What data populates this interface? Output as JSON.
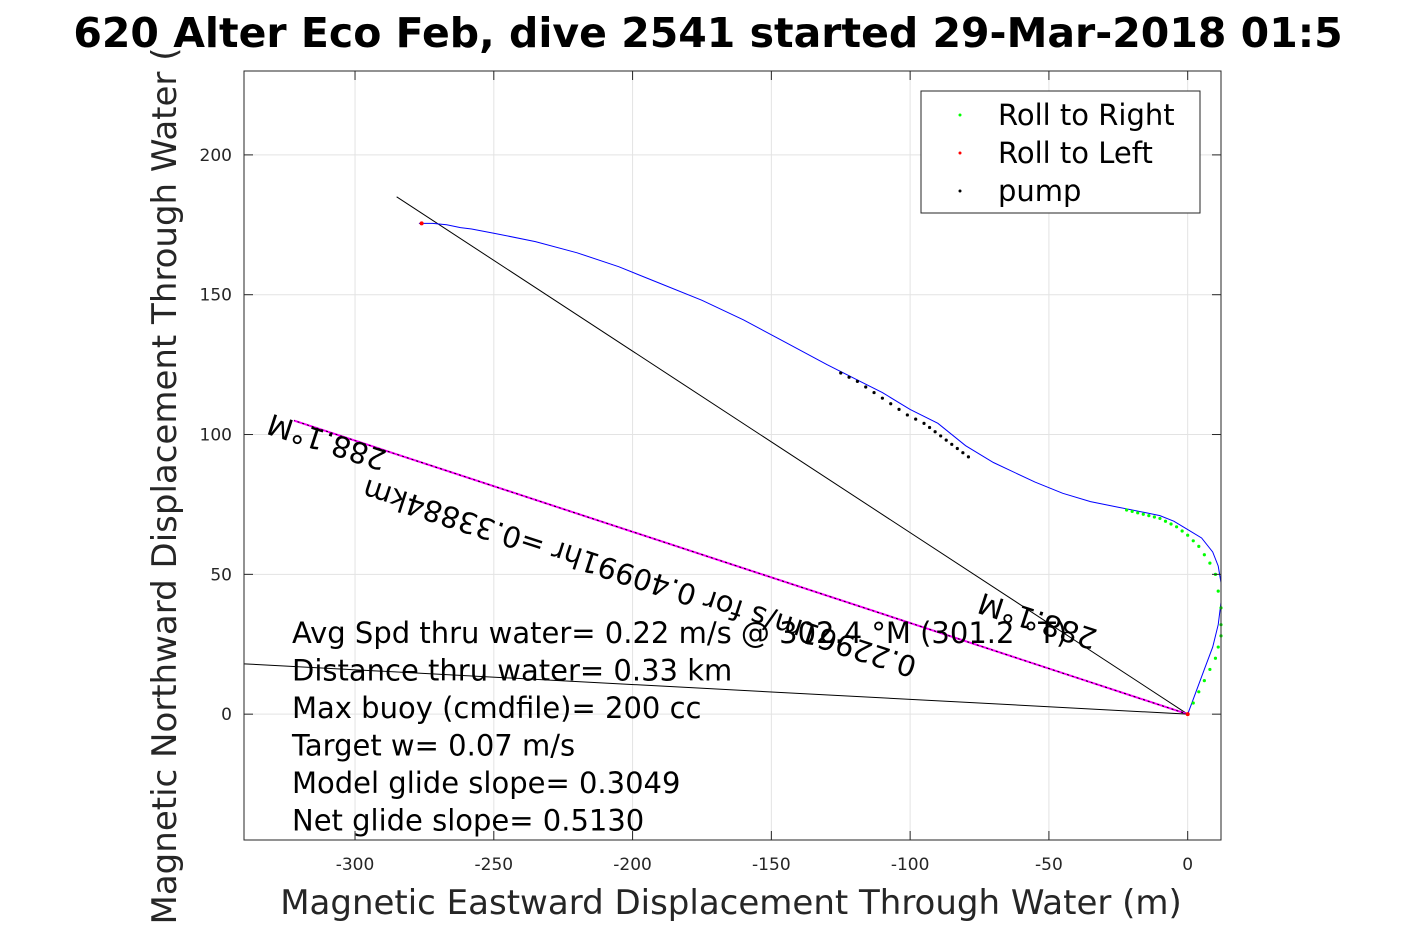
{
  "chart_data": {
    "type": "scatter",
    "title": "620 Alter Eco Feb, dive 2541 started 29-Mar-2018 01:5",
    "xlabel": "Magnetic Eastward Displacement Through Water (m)",
    "ylabel": "Magnetic Northward Displacement Through Water (",
    "xlim": [
      -340,
      12
    ],
    "ylim": [
      -45,
      230
    ],
    "grid": true,
    "legend_position": "top-right",
    "x_ticks": [
      -300,
      -250,
      -200,
      -150,
      -100,
      -50,
      0
    ],
    "y_ticks": [
      0,
      50,
      100,
      150,
      200
    ],
    "legend": [
      {
        "label": "Roll to Right",
        "color": "#00ff00"
      },
      {
        "label": "Roll to Left",
        "color": "#ff0000"
      },
      {
        "label": "pump",
        "color": "#000000"
      }
    ],
    "track": {
      "color": "#0000ff",
      "x": [
        0,
        3,
        6,
        9,
        11,
        12,
        12,
        11,
        9,
        5,
        0,
        -5,
        -10,
        -15,
        -20,
        -25,
        -35,
        -45,
        -55,
        -70,
        -80,
        -90,
        -100,
        -110,
        -120,
        -130,
        -145,
        -160,
        -175,
        -190,
        -205,
        -220,
        -235,
        -250,
        -258,
        -262,
        -267,
        -272,
        -277
      ],
      "y": [
        0,
        8,
        16,
        24,
        32,
        40,
        47,
        53,
        58,
        63,
        66,
        69,
        71,
        72,
        73,
        74,
        76,
        79,
        83,
        90,
        96,
        104,
        109,
        115,
        120,
        125,
        133,
        141,
        148,
        154,
        160,
        165,
        169,
        172,
        173.5,
        174,
        175,
        175.5,
        175.5
      ]
    },
    "roll_right": {
      "x": [
        0,
        2,
        4,
        6,
        8,
        10,
        11,
        12,
        12,
        12,
        11,
        10,
        8,
        6,
        4,
        2,
        0,
        -2,
        -4,
        -6,
        -8,
        -10,
        -12,
        -14,
        -16,
        -18,
        -20,
        -22
      ],
      "y": [
        0,
        4,
        8,
        12,
        16,
        20,
        24,
        28,
        32,
        38,
        44,
        50,
        54,
        57,
        60,
        62,
        64,
        65.5,
        67,
        68,
        69,
        70,
        70.5,
        71,
        71.5,
        72,
        72.5,
        73
      ]
    },
    "roll_left": {
      "x": [
        0,
        -276
      ],
      "y": [
        0,
        175.5
      ]
    },
    "pump": {
      "x": [
        -125,
        -122,
        -119,
        -116,
        -113,
        -110,
        -107,
        -104,
        -101,
        -98,
        -95,
        -93,
        -91,
        -89,
        -87,
        -85,
        -83,
        -81,
        -79
      ],
      "y": [
        122,
        120.5,
        119,
        117,
        115,
        113,
        111,
        109,
        107,
        105.5,
        104,
        102.5,
        101,
        99.5,
        98,
        96.5,
        95,
        93.5,
        92
      ]
    },
    "lines": [
      {
        "name": "model-heading-line",
        "color": "#000000",
        "x": [
          0,
          -285
        ],
        "y": [
          0,
          185
        ]
      },
      {
        "name": "net-heading-line",
        "color": "#ff00ff",
        "x": [
          0,
          -322
        ],
        "y": [
          0,
          105
        ]
      },
      {
        "name": "net-heading-overlay",
        "color": "#000000",
        "x": [
          0,
          -322
        ],
        "y": [
          0,
          105
        ]
      },
      {
        "name": "current-line",
        "color": "#000000",
        "x": [
          0,
          -340
        ],
        "y": [
          0,
          18
        ]
      }
    ],
    "rotated_labels": [
      {
        "text": "288.1°M",
        "x": -288,
        "y": 94,
        "angle": 198
      },
      {
        "text": "0.22961m/s for 0.4099 1hr =0.33884km",
        "text_display": "0.22961m/s for 0.40991hr =0.33884km",
        "x": -97,
        "y": 20,
        "angle": 198
      },
      {
        "text": "288.1°M",
        "x": -32,
        "y": 30,
        "angle": 198
      }
    ],
    "annotations": [
      "Avg Spd thru water=  0.22 m/s @ 302.4 °M (301.2 °T)",
      "Distance thru water=  0.33 km",
      "Max buoy (cmdfile)= 200 cc",
      "Target w= 0.07 m/s",
      "Model glide slope= 0.3049",
      "Net glide slope= 0.5130"
    ]
  }
}
